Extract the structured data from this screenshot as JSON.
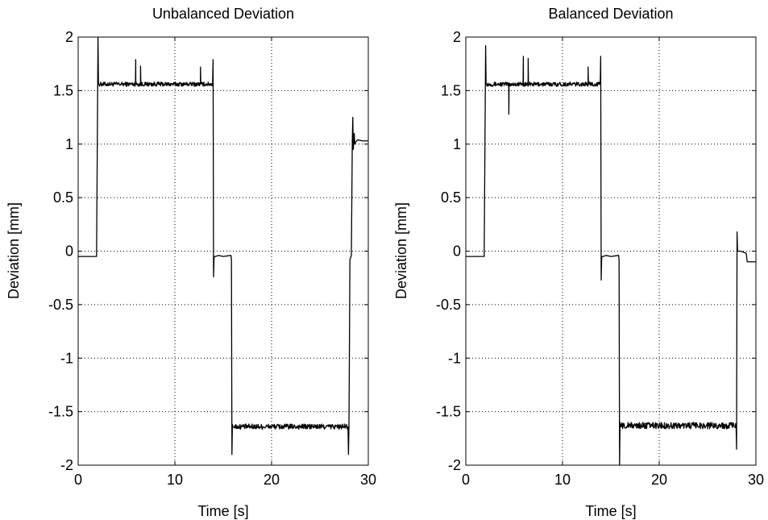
{
  "chart_data": [
    {
      "type": "line",
      "title": "Unbalanced Deviation",
      "xlabel": "Time [s]",
      "ylabel": "Deviation [mm]",
      "xlim": [
        0,
        30
      ],
      "ylim": [
        -2,
        2
      ],
      "xticks": [
        0,
        10,
        20,
        30
      ],
      "xtick_labels": [
        "0",
        "10",
        "20",
        "30"
      ],
      "yticks": [
        2,
        1.5,
        1,
        0.5,
        0,
        -0.5,
        -1,
        -1.5,
        -2
      ],
      "ytick_labels": [
        "2",
        "1.5",
        "1",
        "0.5",
        "0",
        "-0.5",
        "-1",
        "-1.5",
        "-2"
      ],
      "grid": true,
      "line_color": "#000000",
      "series": [
        {
          "x": [
            0,
            1.9,
            1.95,
            2.05,
            2.1,
            2.15,
            2.3,
            5.9,
            5.95,
            6.0,
            6.05,
            6.4,
            6.45,
            6.5,
            6.55,
            12.6,
            12.65,
            12.7,
            12.75,
            13.9,
            13.95,
            14.0,
            14.05,
            14.1,
            14.2,
            14.5,
            15.0,
            15.8,
            15.85,
            15.9,
            15.95,
            16.0,
            16.05,
            16.2,
            27.9,
            27.95,
            28.0,
            28.05,
            28.1,
            28.25,
            28.35,
            28.4,
            28.45,
            28.55,
            28.6,
            28.7,
            28.9,
            29.4,
            30.0
          ],
          "y": [
            -0.05,
            -0.05,
            0.6,
            2.0,
            1.56,
            1.56,
            1.56,
            1.56,
            1.79,
            1.57,
            1.56,
            1.56,
            1.73,
            1.57,
            1.56,
            1.56,
            1.72,
            1.57,
            1.56,
            1.56,
            1.79,
            -0.24,
            -0.06,
            -0.05,
            -0.05,
            -0.04,
            -0.05,
            -0.04,
            -0.08,
            -1.9,
            -1.62,
            -1.64,
            -1.64,
            -1.64,
            -1.64,
            -1.9,
            -1.64,
            -0.9,
            -0.08,
            -0.04,
            1.05,
            1.25,
            0.95,
            1.1,
            1.0,
            1.02,
            1.04,
            1.03,
            1.03
          ]
        }
      ],
      "noise_segments": [
        {
          "from": 2.2,
          "to": 13.9,
          "center": 1.56,
          "amplitude": 0.02
        },
        {
          "from": 16.1,
          "to": 27.9,
          "center": -1.64,
          "amplitude": 0.025
        }
      ]
    },
    {
      "type": "line",
      "title": "Balanced Deviation",
      "xlabel": "Time [s]",
      "ylabel": "Deviation [mm]",
      "xlim": [
        0,
        30
      ],
      "ylim": [
        -2,
        2
      ],
      "xticks": [
        0,
        10,
        20,
        30
      ],
      "xtick_labels": [
        "0",
        "10",
        "20",
        "30"
      ],
      "yticks": [
        2,
        1.5,
        1,
        0.5,
        0,
        -0.5,
        -1,
        -1.5,
        -2
      ],
      "ytick_labels": [
        "2",
        "1.5",
        "1",
        "0.5",
        "0",
        "-0.5",
        "-1",
        "-1.5",
        "-2"
      ],
      "grid": true,
      "line_color": "#000000",
      "series": [
        {
          "x": [
            0,
            1.9,
            1.95,
            2.05,
            2.1,
            2.15,
            4.4,
            4.45,
            4.5,
            4.55,
            5.9,
            5.95,
            6.0,
            6.05,
            6.4,
            6.45,
            6.5,
            6.55,
            12.6,
            12.65,
            12.7,
            12.75,
            13.9,
            13.95,
            14.0,
            14.05,
            14.1,
            14.2,
            14.5,
            15.0,
            15.8,
            15.85,
            15.9,
            15.95,
            16.0,
            16.05,
            16.2,
            27.9,
            27.95,
            28.0,
            28.05,
            28.1,
            28.2,
            28.4,
            29.0,
            29.1,
            30.0
          ],
          "y": [
            -0.05,
            -0.05,
            0.6,
            1.92,
            1.56,
            1.56,
            1.56,
            1.28,
            1.55,
            1.56,
            1.56,
            1.82,
            1.57,
            1.56,
            1.56,
            1.8,
            1.57,
            1.56,
            1.56,
            1.72,
            1.57,
            1.56,
            1.56,
            1.82,
            -0.27,
            -0.06,
            -0.05,
            -0.05,
            -0.04,
            -0.05,
            -0.04,
            -0.08,
            -2.0,
            -1.6,
            -1.64,
            -1.62,
            -1.63,
            -1.63,
            -1.63,
            -1.85,
            0.18,
            0.0,
            0.0,
            0.0,
            -0.02,
            -0.1,
            -0.1
          ]
        }
      ],
      "noise_segments": [
        {
          "from": 2.2,
          "to": 13.9,
          "center": 1.56,
          "amplitude": 0.02
        },
        {
          "from": 16.1,
          "to": 27.9,
          "center": -1.63,
          "amplitude": 0.03
        }
      ]
    }
  ]
}
